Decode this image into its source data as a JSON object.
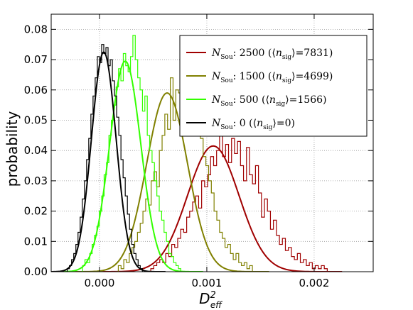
{
  "chart_data": {
    "type": "line",
    "title": "",
    "xlabel": "D",
    "xlabel_sup": "2",
    "xlabel_sub": "eff",
    "ylabel": "probability",
    "xlim": [
      -0.00045,
      0.00255
    ],
    "ylim": [
      0,
      0.085
    ],
    "x_ticks": [
      0.0,
      0.001,
      0.002
    ],
    "x_tick_labels": [
      "0.000",
      "0.001",
      "0.002"
    ],
    "y_ticks": [
      0.0,
      0.01,
      0.02,
      0.03,
      0.04,
      0.05,
      0.06,
      0.07,
      0.08
    ],
    "y_tick_labels": [
      "0.00",
      "0.01",
      "0.02",
      "0.03",
      "0.04",
      "0.05",
      "0.06",
      "0.07",
      "0.08"
    ],
    "grid": true,
    "legend_position": "top-right",
    "series": [
      {
        "legend_n": "2500",
        "legend_nsig": "7831",
        "color": "#a00000",
        "mean": 0.00106,
        "sigma": 0.00024,
        "peak": 0.0415,
        "hist_range": [
          0.00045,
          0.00215
        ],
        "hist_values": [
          0.0,
          0.001,
          0.002,
          0.003,
          0.004,
          0.003,
          0.006,
          0.005,
          0.009,
          0.008,
          0.011,
          0.014,
          0.013,
          0.018,
          0.02,
          0.023,
          0.025,
          0.021,
          0.03,
          0.028,
          0.032,
          0.038,
          0.035,
          0.04,
          0.046,
          0.038,
          0.042,
          0.036,
          0.044,
          0.039,
          0.043,
          0.035,
          0.03,
          0.041,
          0.032,
          0.029,
          0.035,
          0.026,
          0.018,
          0.024,
          0.02,
          0.014,
          0.017,
          0.012,
          0.009,
          0.011,
          0.007,
          0.008,
          0.005,
          0.004,
          0.006,
          0.003,
          0.004,
          0.002,
          0.003,
          0.001,
          0.002,
          0.001,
          0.002,
          0.001,
          0.0
        ]
      },
      {
        "legend_n": "1500",
        "legend_nsig": "4699",
        "color": "#808000",
        "mean": 0.00063,
        "sigma": 0.00019,
        "peak": 0.059,
        "hist_range": [
          0.00015,
          0.00145
        ],
        "hist_values": [
          0.0,
          0.002,
          0.001,
          0.004,
          0.003,
          0.006,
          0.008,
          0.01,
          0.013,
          0.016,
          0.02,
          0.024,
          0.022,
          0.03,
          0.033,
          0.028,
          0.04,
          0.045,
          0.052,
          0.047,
          0.064,
          0.05,
          0.06,
          0.059,
          0.066,
          0.058,
          0.075,
          0.07,
          0.052,
          0.054,
          0.049,
          0.044,
          0.038,
          0.035,
          0.03,
          0.026,
          0.02,
          0.017,
          0.013,
          0.011,
          0.008,
          0.009,
          0.006,
          0.004,
          0.006,
          0.003,
          0.002,
          0.003,
          0.001,
          0.002,
          0.0
        ]
      },
      {
        "legend_n": "500",
        "legend_nsig": "1566",
        "color": "#33ff00",
        "mean": 0.00024,
        "sigma": 0.000145,
        "peak": 0.0695,
        "hist_range": [
          -0.00018,
          0.00078
        ],
        "hist_values": [
          0.0,
          0.002,
          0.004,
          0.003,
          0.006,
          0.009,
          0.012,
          0.015,
          0.02,
          0.025,
          0.032,
          0.036,
          0.045,
          0.05,
          0.055,
          0.061,
          0.067,
          0.063,
          0.072,
          0.068,
          0.066,
          0.071,
          0.078,
          0.07,
          0.064,
          0.06,
          0.053,
          0.058,
          0.045,
          0.04,
          0.036,
          0.03,
          0.025,
          0.02,
          0.017,
          0.013,
          0.01,
          0.006,
          0.005,
          0.003,
          0.002,
          0.001,
          0.0
        ]
      },
      {
        "legend_n": "0",
        "legend_nsig": "0",
        "color": "#000000",
        "mean": 4e-05,
        "sigma": 0.000115,
        "peak": 0.0725,
        "hist_range": [
          -0.00032,
          0.00042
        ],
        "hist_values": [
          0.0,
          0.001,
          0.002,
          0.004,
          0.006,
          0.009,
          0.013,
          0.018,
          0.024,
          0.03,
          0.037,
          0.044,
          0.052,
          0.058,
          0.064,
          0.071,
          0.069,
          0.075,
          0.072,
          0.074,
          0.068,
          0.07,
          0.063,
          0.058,
          0.051,
          0.045,
          0.037,
          0.031,
          0.025,
          0.019,
          0.014,
          0.009,
          0.006,
          0.004,
          0.002,
          0.001,
          0.0
        ]
      }
    ],
    "legend_label_prefix": "N",
    "legend_label_sub": "Sou",
    "legend_nsig_sub": "sig"
  }
}
